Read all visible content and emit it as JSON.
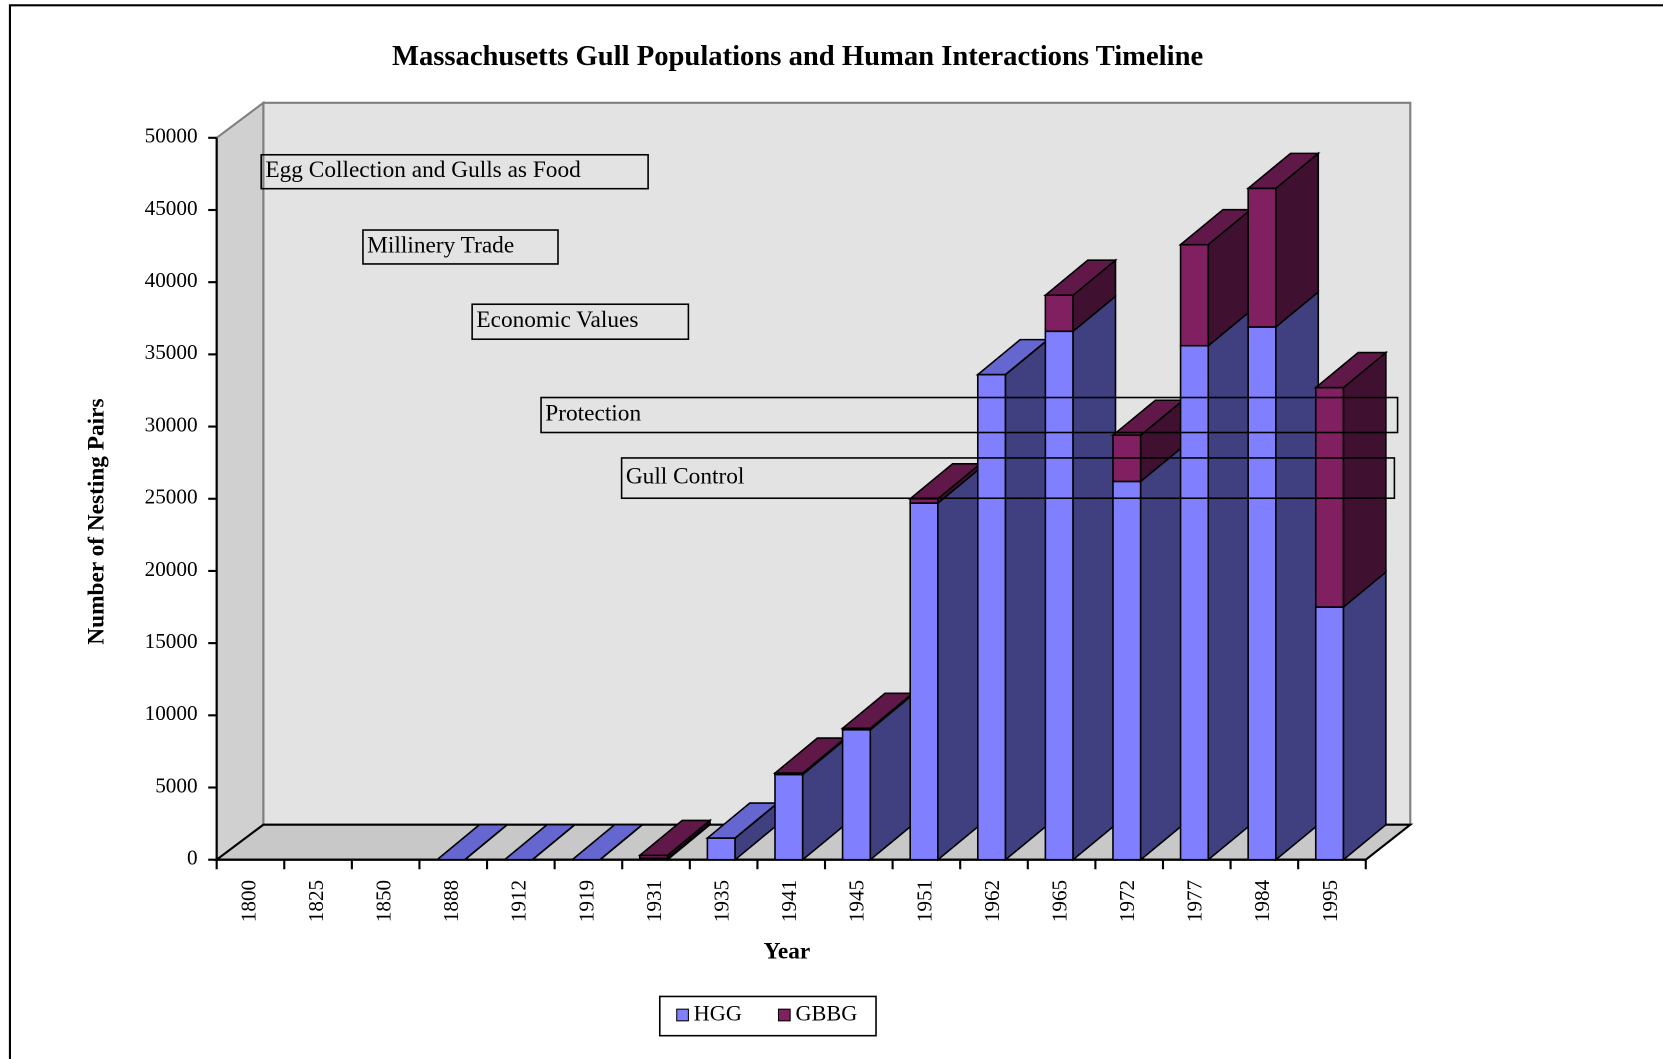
{
  "chart_data": {
    "type": "bar3d_stacked",
    "title": "Massachusetts Gull Populations and Human Interactions Timeline",
    "x_label": "Year",
    "y_label": "Number of Nesting Pairs",
    "categories": [
      "1800",
      "1825",
      "1850",
      "1888",
      "1912",
      "1919",
      "1931",
      "1935",
      "1941",
      "1945",
      "1951",
      "1962",
      "1965",
      "1972",
      "1977",
      "1984",
      "1995"
    ],
    "series": [
      {
        "name": "HGG",
        "color": "#8080ff",
        "side": "#404080",
        "top": "#6666d0",
        "values": [
          null,
          null,
          null,
          0,
          0,
          0,
          100,
          1500,
          5900,
          9000,
          24700,
          33600,
          36600,
          26200,
          35600,
          36900,
          17500
        ]
      },
      {
        "name": "GBBG",
        "color": "#802060",
        "side": "#401030",
        "top": "#601848",
        "values": [
          null,
          null,
          null,
          0,
          0,
          0,
          200,
          0,
          100,
          100,
          300,
          0,
          2500,
          3200,
          7000,
          9600,
          15200
        ]
      }
    ],
    "ylim": [
      0,
      50000
    ],
    "yticks": [
      0,
      5000,
      10000,
      15000,
      20000,
      25000,
      30000,
      35000,
      40000,
      45000,
      50000
    ],
    "annotations": [
      "Egg Collection and Gulls as Food",
      "Millinery Trade",
      "Economic Values",
      "Protection",
      "Gull Control"
    ],
    "legend": "bottom"
  }
}
